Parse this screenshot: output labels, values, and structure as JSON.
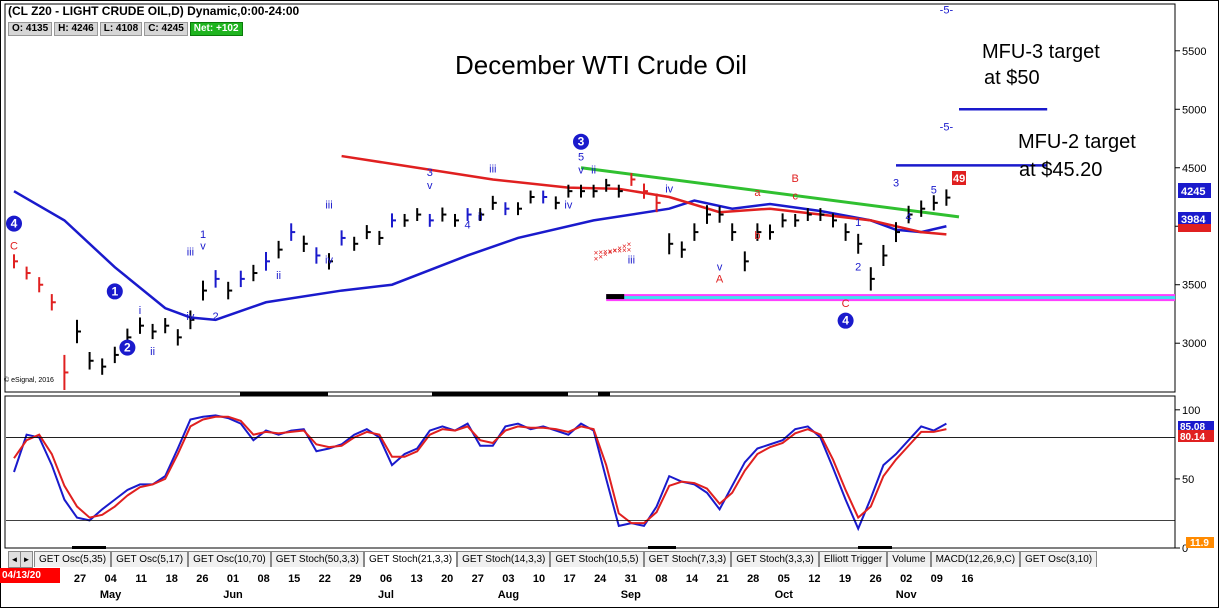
{
  "header": {
    "title": "(CL Z20 - LIGHT CRUDE OIL,D) Dynamic,0:00-24:00",
    "ohlc": {
      "open": "O: 4135",
      "high": "H: 4246",
      "low": "L: 4108",
      "close": "C: 4245",
      "net": "Net: +102"
    },
    "current_date": "04/13/20",
    "copyright": "© eSignal, 2016"
  },
  "annotations": {
    "main_title": "December WTI Crude Oil",
    "target3_l1": "MFU-3 target",
    "target3_l2": "at $50",
    "target2_l1": "MFU-2 target",
    "target2_l2": "at $45.20",
    "pti": "49 PTI",
    "price_last": "4245",
    "price_ma": "3984",
    "osc_last1": "85.08",
    "osc_last2": "80.14",
    "osc_low_badge": "11.9"
  },
  "colors": {
    "price_bar": "#000000",
    "ma_blue": "#1a1acc",
    "ma_red": "#e02020",
    "trend_green": "#30c030",
    "target_blue": "#1a1acc",
    "zone_magenta": "#ff40ff",
    "zone_cyan": "#40e0f0",
    "wave_blue": "#1a1acc",
    "wave_red": "#e02020"
  },
  "tabs": [
    "GET Osc(5,35)",
    "GET Osc(5,17)",
    "GET Osc(10,70)",
    "GET Stoch(50,3,3)",
    "GET Stoch(21,3,3)",
    "GET Stoch(14,3,3)",
    "GET Stoch(10,5,5)",
    "GET Stoch(7,3,3)",
    "GET Stoch(3,3,3)",
    "Elliott Trigger",
    "Volume",
    "MACD(12,26,9,C)",
    "GET Osc(3,10)"
  ],
  "chart_data": [
    {
      "type": "line",
      "title": "December WTI Crude Oil",
      "xlabel": "",
      "ylabel": "",
      "ylim": [
        2600,
        5900
      ],
      "y_ticks": [
        3000,
        3500,
        4000,
        4500,
        5000,
        5500
      ],
      "x_ticks": [
        "27",
        "04",
        "11",
        "18",
        "26",
        "01",
        "08",
        "15",
        "22",
        "29",
        "06",
        "13",
        "20",
        "27",
        "03",
        "10",
        "17",
        "24",
        "31",
        "08",
        "14",
        "21",
        "28",
        "05",
        "12",
        "19",
        "26",
        "02",
        "09",
        "16"
      ],
      "months": [
        {
          "label": "May",
          "tick": 1
        },
        {
          "label": "Jun",
          "tick": 5
        },
        {
          "label": "Jul",
          "tick": 10
        },
        {
          "label": "Aug",
          "tick": 14
        },
        {
          "label": "Sep",
          "tick": 18
        },
        {
          "label": "Oct",
          "tick": 23
        },
        {
          "label": "Nov",
          "tick": 27
        }
      ],
      "price_closes": [
        3700,
        3600,
        3500,
        3350,
        2750,
        3100,
        2850,
        2800,
        2900,
        3050,
        3150,
        3100,
        3150,
        3050,
        3200,
        3450,
        3550,
        3450,
        3550,
        3600,
        3700,
        3800,
        3950,
        3850,
        3750,
        3700,
        3900,
        3850,
        3950,
        3900,
        4050,
        4050,
        4100,
        4050,
        4100,
        4050,
        4100,
        4100,
        4200,
        4150,
        4150,
        4250,
        4250,
        4200,
        4300,
        4300,
        4300,
        4350,
        4300,
        4400,
        4300,
        4200,
        3850,
        3800,
        3950,
        4100,
        4100,
        3950,
        3700,
        3950,
        3950,
        4050,
        4050,
        4100,
        4100,
        4050,
        3950,
        3850,
        3550,
        3750,
        3950,
        4100,
        4150,
        4200,
        4245
      ],
      "price_ranges": [
        120,
        110,
        130,
        140,
        300,
        200,
        150,
        140,
        140,
        150,
        140,
        130,
        130,
        140,
        160,
        170,
        150,
        150,
        140,
        140,
        160,
        150,
        150,
        140,
        140,
        140,
        130,
        120,
        120,
        120,
        120,
        110,
        110,
        110,
        120,
        110,
        110,
        110,
        120,
        110,
        110,
        110,
        110,
        110,
        110,
        110,
        110,
        110,
        110,
        110,
        130,
        160,
        180,
        140,
        150,
        160,
        140,
        150,
        170,
        150,
        130,
        120,
        110,
        110,
        110,
        120,
        150,
        170,
        200,
        180,
        170,
        150,
        140,
        130,
        140
      ],
      "ma_blue": [
        [
          0,
          4300
        ],
        [
          4,
          4050
        ],
        [
          8,
          3650
        ],
        [
          12,
          3300
        ],
        [
          14,
          3220
        ],
        [
          16,
          3200
        ],
        [
          20,
          3350
        ],
        [
          26,
          3450
        ],
        [
          30,
          3500
        ],
        [
          36,
          3750
        ],
        [
          40,
          3900
        ],
        [
          46,
          4050
        ],
        [
          52,
          4150
        ],
        [
          54,
          4220
        ],
        [
          57,
          4150
        ],
        [
          60,
          4190
        ],
        [
          64,
          4130
        ],
        [
          68,
          4050
        ],
        [
          70,
          3970
        ],
        [
          72,
          3950
        ],
        [
          74,
          4000
        ]
      ],
      "ma_red": [
        [
          26,
          4600
        ],
        [
          32,
          4500
        ],
        [
          38,
          4400
        ],
        [
          44,
          4330
        ],
        [
          48,
          4320
        ],
        [
          52,
          4250
        ],
        [
          56,
          4120
        ],
        [
          60,
          4150
        ],
        [
          64,
          4100
        ],
        [
          68,
          4050
        ],
        [
          72,
          3950
        ],
        [
          74,
          3930
        ]
      ],
      "trend_green": [
        [
          45,
          4500
        ],
        [
          75,
          4080
        ]
      ],
      "target_lines": [
        {
          "label": "MFU-3 target",
          "value": 5000,
          "x": [
            75,
            82
          ]
        },
        {
          "label": "MFU-2 target",
          "value": 4520,
          "x": [
            70,
            82
          ]
        }
      ],
      "support_zone": {
        "low": 3360,
        "high": 3420,
        "x": [
          47,
          91
        ]
      },
      "red_x_markers": [
        {
          "x": [
            46,
            49
          ],
          "y": [
            3700,
            3840
          ]
        },
        {
          "x": [
            46,
            49
          ],
          "y": [
            3750,
            3780
          ]
        }
      ],
      "wave_labels": [
        {
          "text": "C",
          "color": "red",
          "i": 0,
          "price": 3800
        },
        {
          "text": "4",
          "color": "blue",
          "i": 0,
          "price": 3980,
          "circled": true
        },
        {
          "text": "1",
          "color": "blue",
          "i": 8,
          "price": 3400,
          "circled": true
        },
        {
          "text": "2",
          "color": "blue",
          "i": 9,
          "price": 2920,
          "circled": true
        },
        {
          "text": "i",
          "color": "blue",
          "i": 10,
          "price": 3250
        },
        {
          "text": "ii",
          "color": "blue",
          "i": 11,
          "price": 2900
        },
        {
          "text": "iii",
          "color": "blue",
          "i": 14,
          "price": 3750
        },
        {
          "text": "iv",
          "color": "blue",
          "i": 14,
          "price": 3200
        },
        {
          "text": "1",
          "color": "blue",
          "i": 15,
          "price": 3900
        },
        {
          "text": "v",
          "color": "blue",
          "i": 15,
          "price": 3800
        },
        {
          "text": "2",
          "color": "blue",
          "i": 16,
          "price": 3200
        },
        {
          "text": "ii",
          "color": "blue",
          "i": 21,
          "price": 3550
        },
        {
          "text": "iii",
          "color": "blue",
          "i": 25,
          "price": 4150
        },
        {
          "text": "iv",
          "color": "blue",
          "i": 25,
          "price": 3680
        },
        {
          "text": "3",
          "color": "blue",
          "i": 33,
          "price": 4430
        },
        {
          "text": "v",
          "color": "blue",
          "i": 33,
          "price": 4320
        },
        {
          "text": "4",
          "color": "blue",
          "i": 36,
          "price": 3980
        },
        {
          "text": "iii",
          "color": "blue",
          "i": 38,
          "price": 4460
        },
        {
          "text": "ii",
          "color": "blue",
          "i": 37,
          "price": 4050
        },
        {
          "text": "3",
          "color": "blue",
          "i": 45,
          "price": 4680,
          "circled": true
        },
        {
          "text": "5",
          "color": "blue",
          "i": 45,
          "price": 4560
        },
        {
          "text": "v",
          "color": "blue",
          "i": 45,
          "price": 4450
        },
        {
          "text": "ii",
          "color": "blue",
          "i": 46,
          "price": 4450
        },
        {
          "text": "iv",
          "color": "blue",
          "i": 44,
          "price": 4150
        },
        {
          "text": "iii",
          "color": "blue",
          "i": 49,
          "price": 3680
        },
        {
          "text": "iv",
          "color": "blue",
          "i": 52,
          "price": 4290
        },
        {
          "text": "v",
          "color": "blue",
          "i": 56,
          "price": 3620
        },
        {
          "text": "A",
          "color": "red",
          "i": 56,
          "price": 3520
        },
        {
          "text": "a",
          "color": "red",
          "i": 59,
          "price": 4260
        },
        {
          "text": "b",
          "color": "red",
          "i": 59,
          "price": 3890
        },
        {
          "text": "B",
          "color": "red",
          "i": 62,
          "price": 4380
        },
        {
          "text": "c",
          "color": "red",
          "i": 62,
          "price": 4230
        },
        {
          "text": "C",
          "color": "red",
          "i": 66,
          "price": 3310
        },
        {
          "text": "4",
          "color": "blue",
          "i": 66,
          "price": 3150,
          "circled": true
        },
        {
          "text": "1",
          "color": "blue",
          "i": 67,
          "price": 4000
        },
        {
          "text": "2",
          "color": "blue",
          "i": 67,
          "price": 3620
        },
        {
          "text": "3",
          "color": "blue",
          "i": 70,
          "price": 4340
        },
        {
          "text": "4",
          "color": "blue",
          "i": 71,
          "price": 4050
        },
        {
          "text": "5",
          "color": "blue",
          "i": 73,
          "price": 4280
        },
        {
          "text": "-5-",
          "color": "blue",
          "i": 74,
          "price": 5820
        },
        {
          "text": "-5-",
          "color": "blue",
          "i": 74,
          "price": 4820
        }
      ]
    },
    {
      "type": "line",
      "title": "",
      "ylim": [
        0,
        110
      ],
      "y_ticks": [
        0,
        50,
        100
      ],
      "levels": [
        80,
        20
      ],
      "series": [
        {
          "color": "blue",
          "values": [
            55,
            82,
            80,
            60,
            35,
            22,
            20,
            28,
            35,
            42,
            46,
            46,
            52,
            72,
            93,
            95,
            96,
            94,
            90,
            78,
            85,
            82,
            85,
            86,
            70,
            72,
            75,
            82,
            86,
            80,
            60,
            68,
            72,
            85,
            88,
            85,
            90,
            74,
            74,
            88,
            90,
            86,
            88,
            85,
            82,
            90,
            85,
            50,
            16,
            18,
            16,
            30,
            52,
            48,
            46,
            40,
            28,
            45,
            62,
            72,
            75,
            78,
            86,
            88,
            80,
            58,
            35,
            14,
            36,
            60,
            68,
            78,
            88,
            85,
            90
          ]
        },
        {
          "color": "red",
          "values": [
            65,
            78,
            82,
            68,
            45,
            30,
            22,
            24,
            30,
            38,
            44,
            46,
            50,
            68,
            88,
            93,
            95,
            95,
            92,
            82,
            84,
            83,
            84,
            85,
            75,
            73,
            74,
            80,
            84,
            82,
            66,
            66,
            70,
            82,
            86,
            85,
            88,
            78,
            76,
            85,
            88,
            87,
            87,
            86,
            84,
            88,
            86,
            60,
            25,
            18,
            18,
            26,
            45,
            48,
            47,
            43,
            32,
            40,
            56,
            68,
            73,
            76,
            83,
            86,
            82,
            64,
            42,
            22,
            30,
            52,
            64,
            74,
            84,
            84,
            86
          ]
        }
      ]
    }
  ]
}
